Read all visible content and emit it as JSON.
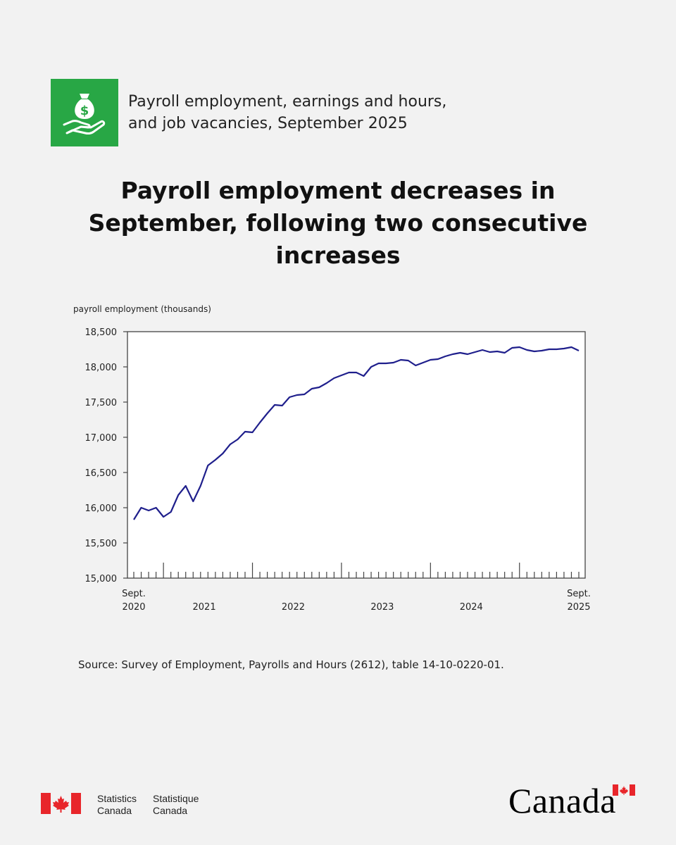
{
  "header": {
    "subtitle_line1": "Payroll employment, earnings and hours,",
    "subtitle_line2": "and job vacancies, September 2025",
    "icon": "money-bag-hand-icon",
    "accent_color": "#28a745"
  },
  "headline": {
    "line1": "Payroll employment decreases in",
    "line2": "September, following two consecutive",
    "line3": "increases"
  },
  "chart_data": {
    "type": "line",
    "ylabel": "payroll employment (thousands)",
    "ylim": [
      15000,
      18500
    ],
    "yticks": [
      15000,
      15500,
      16000,
      16500,
      17000,
      17500,
      18000,
      18500
    ],
    "ytick_labels": [
      "15,000",
      "15,500",
      "16,000",
      "16,500",
      "17,000",
      "17,500",
      "18,000",
      "18,500"
    ],
    "start_label": [
      "Sept.",
      "2020"
    ],
    "end_label": [
      "Sept.",
      "2025"
    ],
    "year_labels": [
      "2021",
      "2022",
      "2023",
      "2024"
    ],
    "line_color": "#1f1f8c",
    "series": [
      {
        "name": "Payroll employment",
        "values": [
          15830,
          16000,
          15960,
          16000,
          15870,
          15940,
          16180,
          16310,
          16090,
          16310,
          16600,
          16680,
          16770,
          16900,
          16970,
          17080,
          17070,
          17210,
          17340,
          17460,
          17450,
          17570,
          17600,
          17610,
          17690,
          17710,
          17770,
          17840,
          17880,
          17920,
          17920,
          17870,
          18000,
          18050,
          18050,
          18060,
          18100,
          18090,
          18020,
          18060,
          18100,
          18110,
          18150,
          18180,
          18200,
          18180,
          18210,
          18240,
          18210,
          18220,
          18200,
          18270,
          18280,
          18240,
          18220,
          18230,
          18250,
          18250,
          18260,
          18280,
          18230
        ]
      }
    ]
  },
  "source": "Source: Survey of Employment, Payrolls and Hours (2612), table 14-10-0220-01.",
  "footer": {
    "statistics": "Statistics",
    "canada": "Canada",
    "statistique": "Statistique",
    "canada_fr": "Canada",
    "wordmark": "Canada"
  }
}
